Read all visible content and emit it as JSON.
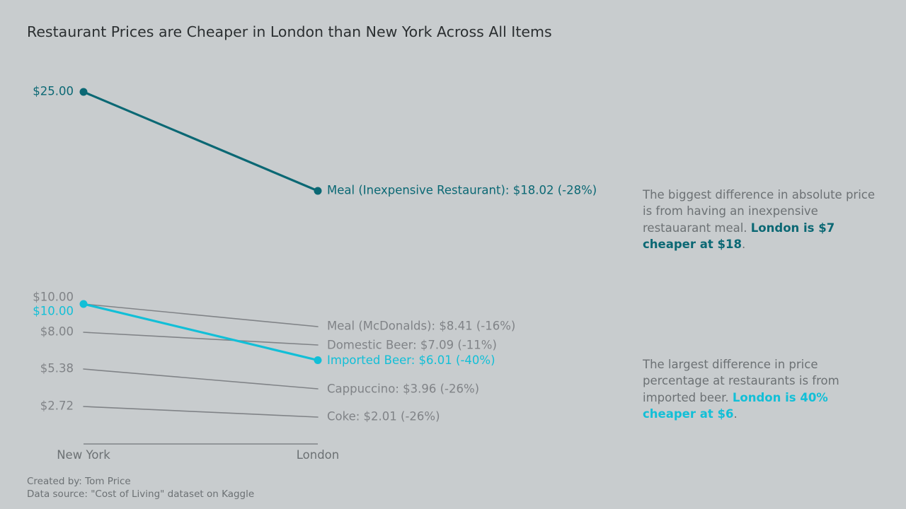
{
  "colors": {
    "background": "#c8ccce",
    "highlight_meal": "#0b6874",
    "highlight_beer": "#12bfd7",
    "muted": "#808387",
    "axis_text": "#6c7174"
  },
  "notes": {
    "meal": {
      "text": "The biggest difference in absolute price is from having an inexpensive restauarant meal. ",
      "highlight": "London is $7 cheaper at $18",
      "end": "."
    },
    "beer": {
      "text": "The largest difference in price percentage at restaurants is from imported beer. ",
      "highlight": "London is 40% cheaper at $6",
      "end": "."
    }
  },
  "footer": {
    "created_by": "Created by: Tom Price",
    "source": "Data source: \"Cost of Living\" dataset on Kaggle"
  },
  "chart_data": {
    "type": "line",
    "title": "Restaurant Prices are Cheaper in London than New York Across All Items",
    "categories": [
      "New York",
      "London"
    ],
    "series": [
      {
        "name": "Meal (Inexpensive Restaurant)",
        "values": [
          25.0,
          18.02
        ],
        "start_label": "$25.00",
        "end_label": "Meal (Inexpensive Restaurant): $18.02 (-28%)",
        "highlight": "meal"
      },
      {
        "name": "Meal (McDonalds)",
        "values": [
          10.0,
          8.41
        ],
        "start_label": "$10.00",
        "end_label": "Meal (McDonalds): $8.41 (-16%)",
        "highlight": null
      },
      {
        "name": "Imported Beer",
        "values": [
          10.0,
          6.01
        ],
        "start_label": "$10.00",
        "end_label": "Imported Beer: $6.01 (-40%)",
        "highlight": "beer"
      },
      {
        "name": "Domestic Beer",
        "values": [
          8.0,
          7.09
        ],
        "start_label": "$8.00",
        "end_label": "Domestic Beer: $7.09 (-11%)",
        "highlight": null
      },
      {
        "name": "Cappuccino",
        "values": [
          5.38,
          3.96
        ],
        "start_label": "$5.38",
        "end_label": "Cappuccino: $3.96 (-26%)",
        "highlight": null
      },
      {
        "name": "Coke",
        "values": [
          2.72,
          2.01
        ],
        "start_label": "$2.72",
        "end_label": "Coke: $2.01 (-26%)",
        "highlight": null
      }
    ],
    "ylim": [
      0,
      25
    ],
    "grid": false,
    "legend": "none"
  }
}
